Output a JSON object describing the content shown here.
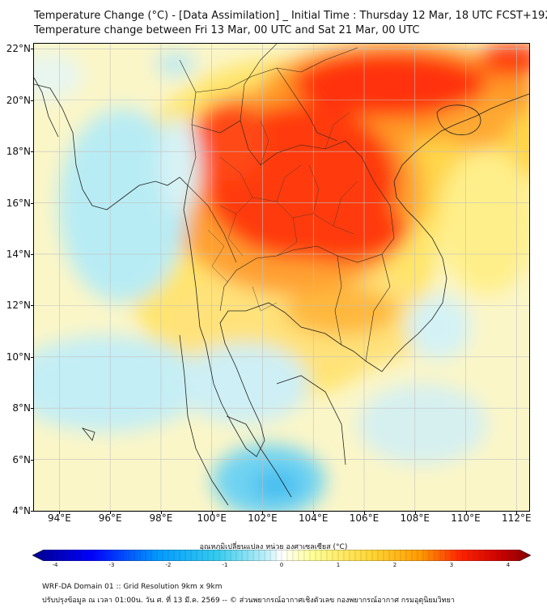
{
  "title": {
    "line1": "Temperature Change (°C) - [Data Assimilation] _ Initial Time : Thursday 12 Mar, 18 UTC FCST+192",
    "line2": "Temperature change between Fri 13 Mar, 00 UTC and Sat 21 Mar, 00 UTC"
  },
  "map": {
    "lon_range": [
      93,
      112.5
    ],
    "lat_range": [
      4,
      22.2
    ],
    "lon_ticks": [
      "94°E",
      "96°E",
      "98°E",
      "100°E",
      "102°E",
      "104°E",
      "106°E",
      "108°E",
      "110°E",
      "112°E"
    ],
    "lat_ticks": [
      "4°N",
      "6°N",
      "8°N",
      "10°N",
      "12°N",
      "14°N",
      "16°N",
      "18°N",
      "20°N",
      "22°N"
    ],
    "warm_regions": [
      {
        "lon": 104,
        "lat": 17.5,
        "change_c": 3.2
      },
      {
        "lon": 101,
        "lat": 18.5,
        "change_c": 2.8
      },
      {
        "lon": 106,
        "lat": 20.5,
        "change_c": 3.0
      },
      {
        "lon": 109.5,
        "lat": 19.4,
        "change_c": 2.6
      },
      {
        "lon": 102.5,
        "lat": 21.5,
        "change_c": 2.5
      }
    ],
    "cool_regions": [
      {
        "lon": 95.5,
        "lat": 17,
        "change_c": -1.2
      },
      {
        "lon": 102.5,
        "lat": 4.8,
        "change_c": -1.8
      },
      {
        "lon": 98,
        "lat": 15.5,
        "change_c": -0.8
      },
      {
        "lon": 99,
        "lat": 9,
        "change_c": -0.9
      }
    ]
  },
  "colorbar": {
    "label": "อุณหภูมิเปลี่ยนแปลง หน่วย องศาเซลเซียส (°C)",
    "ticks": [
      "-4",
      "-3",
      "-2",
      "-1",
      "0",
      "1",
      "2",
      "3",
      "4"
    ],
    "colors": [
      "#00008b",
      "#0000ff",
      "#0099ff",
      "#33ccf0",
      "#99e6f5",
      "#ffffff",
      "#ffff99",
      "#ffd633",
      "#ff9900",
      "#ff2200",
      "#cc0000",
      "#800000"
    ]
  },
  "footer": {
    "line1": "WRF-DA Domain 01 :: Grid Resolution 9km x 9km",
    "line2": "ปรับปรุงข้อมูล ณ เวลา 01:00น. วัน ศ. ที่ 13 มี.ค. 2569 -- © ส่วนพยากรณ์อากาศเชิงตัวเลข กองพยากรณ์อากาศ กรมอุตุนิยมวิทยา"
  }
}
